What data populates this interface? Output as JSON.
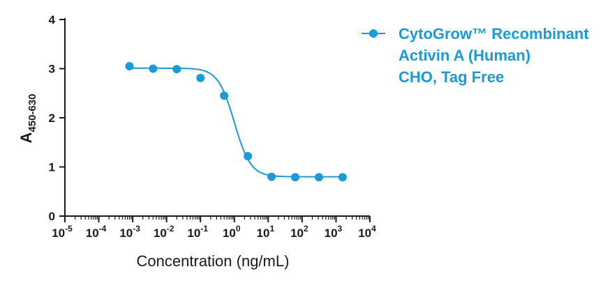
{
  "chart_data": {
    "type": "scatter",
    "xscale": "log",
    "xlim_exponents": [
      -5,
      4
    ],
    "x_tick_exponents": [
      -5,
      -4,
      -3,
      -2,
      -1,
      0,
      1,
      2,
      3,
      4
    ],
    "ylim": [
      0,
      4
    ],
    "y_ticks": [
      "0",
      "1",
      "2",
      "3",
      "4"
    ],
    "xlabel": "Concentration (ng/mL)",
    "ylabel_main": "A",
    "ylabel_sub": "450-630",
    "color": "#1a9ad6",
    "legend_position": "top-right",
    "series": [
      {
        "name": "CytoGrow™ Recombinant Activin A (Human) CHO, Tag Free",
        "legend_lines": [
          "CytoGrow™ Recombinant",
          "Activin A (Human)",
          "CHO, Tag Free"
        ],
        "x": [
          0.0008,
          0.004,
          0.02,
          0.1,
          0.5,
          2.5,
          12.5,
          62.5,
          312.5,
          1562.5
        ],
        "y": [
          3.05,
          3.0,
          2.99,
          2.81,
          2.45,
          1.22,
          0.8,
          0.79,
          0.79,
          0.79
        ],
        "fit": {
          "model": "4PL",
          "top": 3.01,
          "bottom": 0.8,
          "ec50": 1.0,
          "hill": 1.8
        }
      }
    ]
  }
}
